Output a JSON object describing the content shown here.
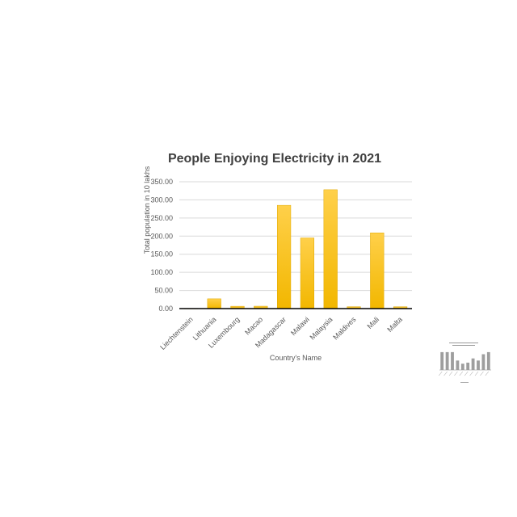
{
  "chart_data": {
    "type": "bar",
    "title": "People Enjoying Electricity in 2021",
    "xlabel": "Country's Name",
    "ylabel": "Total population in 10 lakhs",
    "categories": [
      "Liechtenstein",
      "Lithuania",
      "Luxembourg",
      "Macao",
      "Madagascar",
      "Malawi",
      "Malaysia",
      "Maldives",
      "Mali",
      "Malta"
    ],
    "values": [
      0.4,
      27.0,
      6.4,
      6.6,
      285.0,
      195.0,
      328.0,
      5.2,
      209.0,
      5.1
    ],
    "ylim": [
      0,
      350
    ],
    "yticks": [
      "0.00",
      "50.00",
      "100.00",
      "150.00",
      "200.00",
      "250.00",
      "300.00",
      "350.00"
    ],
    "grid": true,
    "legend": "none",
    "colors": {
      "bar_top": "#FFD04A",
      "bar_bottom": "#F2B700",
      "bar_edge": "#E0A800"
    }
  },
  "thumbnail_chart": {
    "values": [
      0.85,
      0.85,
      0.85,
      0.45,
      0.3,
      0.35,
      0.55,
      0.45,
      0.75,
      0.85
    ],
    "color": "#9e9e9e"
  }
}
